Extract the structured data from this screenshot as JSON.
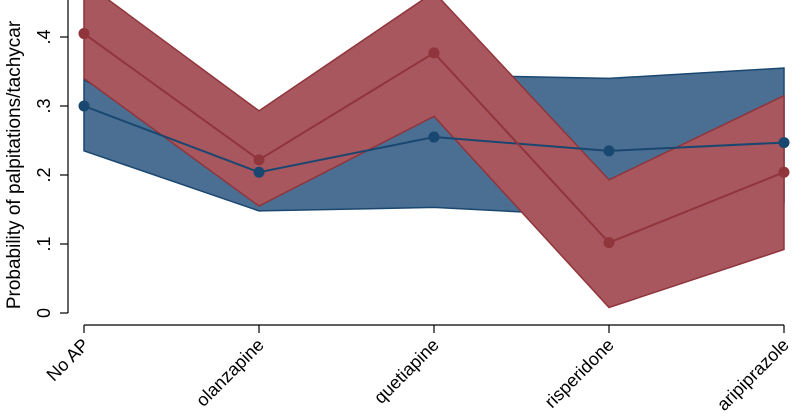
{
  "chart_data": {
    "type": "line",
    "ylabel": "Probability of palpitations/tachycar",
    "categories": [
      "No AP",
      "olanzapine",
      "quetiapine",
      "risperidone",
      "aripiprazole"
    ],
    "yticks": [
      0,
      0.1,
      0.2,
      0.3,
      0.4
    ],
    "ytick_labels": [
      "0",
      ".1",
      ".2",
      ".3",
      ".4"
    ],
    "ylim": [
      0,
      0.46
    ],
    "grid": false,
    "series": [
      {
        "color": "#1a476f",
        "band_color": "#4a6f93",
        "values": [
          0.3,
          0.204,
          0.255,
          0.235,
          0.247
        ],
        "ci_low": [
          0.235,
          0.148,
          0.153,
          0.14,
          0.16
        ],
        "ci_high": [
          0.338,
          0.2,
          0.345,
          0.34,
          0.355
        ]
      },
      {
        "color": "#90353b",
        "band_color": "#a8575f",
        "values": [
          0.405,
          0.222,
          0.377,
          0.102,
          0.204
        ],
        "ci_low": [
          0.34,
          0.155,
          0.285,
          0.008,
          0.092
        ],
        "ci_high": [
          0.48,
          0.293,
          0.465,
          0.193,
          0.315
        ]
      }
    ]
  }
}
